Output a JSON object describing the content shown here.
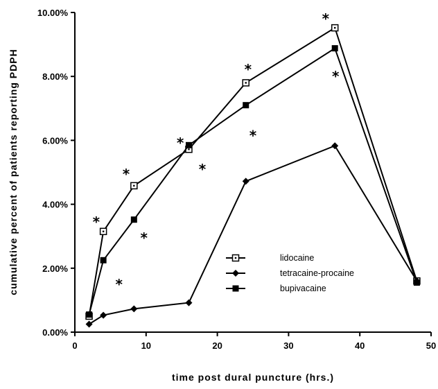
{
  "chart_data": {
    "type": "line",
    "xlabel": "time post dural puncture (hrs.)",
    "ylabel": "cumulative percent of patients reporting PDPH",
    "xlim": [
      0,
      50
    ],
    "ylim": [
      0,
      10
    ],
    "x_ticks": [
      "0",
      "10",
      "20",
      "30",
      "40",
      "50"
    ],
    "y_ticks": [
      "0.00%",
      "2.00%",
      "4.00%",
      "6.00%",
      "8.00%",
      "10.00%"
    ],
    "grid": false,
    "legend_position": "lower-right",
    "series": [
      {
        "name": "lidocaine",
        "marker": "open-square",
        "points": [
          [
            2,
            0.5
          ],
          [
            4,
            3.15
          ],
          [
            8.3,
            4.58
          ],
          [
            16,
            5.72
          ],
          [
            24,
            7.8
          ],
          [
            36.5,
            9.52
          ],
          [
            48,
            1.6
          ]
        ]
      },
      {
        "name": "tetracaine-procaine",
        "marker": "filled-diamond",
        "points": [
          [
            2,
            0.25
          ],
          [
            4,
            0.53
          ],
          [
            8.3,
            0.73
          ],
          [
            16,
            0.92
          ],
          [
            24,
            4.72
          ],
          [
            36.5,
            5.83
          ],
          [
            48,
            1.6
          ]
        ]
      },
      {
        "name": "bupivacaine",
        "marker": "filled-square",
        "points": [
          [
            2,
            0.55
          ],
          [
            4,
            2.25
          ],
          [
            8.3,
            3.52
          ],
          [
            16,
            5.85
          ],
          [
            24,
            7.1
          ],
          [
            36.5,
            8.88
          ],
          [
            48,
            1.55
          ]
        ]
      }
    ],
    "annotations": [
      {
        "text": "*",
        "x": 3,
        "y": 3.45
      },
      {
        "text": "*",
        "x": 7.2,
        "y": 4.95
      },
      {
        "text": "*",
        "x": 14.8,
        "y": 5.92
      },
      {
        "text": "*",
        "x": 24.3,
        "y": 8.22
      },
      {
        "text": "*",
        "x": 35.2,
        "y": 9.8
      },
      {
        "text": "*",
        "x": 6.2,
        "y": 1.5
      },
      {
        "text": "*",
        "x": 9.7,
        "y": 2.95
      },
      {
        "text": "*",
        "x": 17.9,
        "y": 5.1
      },
      {
        "text": "*",
        "x": 25,
        "y": 6.15
      },
      {
        "text": "*",
        "x": 36.6,
        "y": 8.0
      }
    ]
  }
}
